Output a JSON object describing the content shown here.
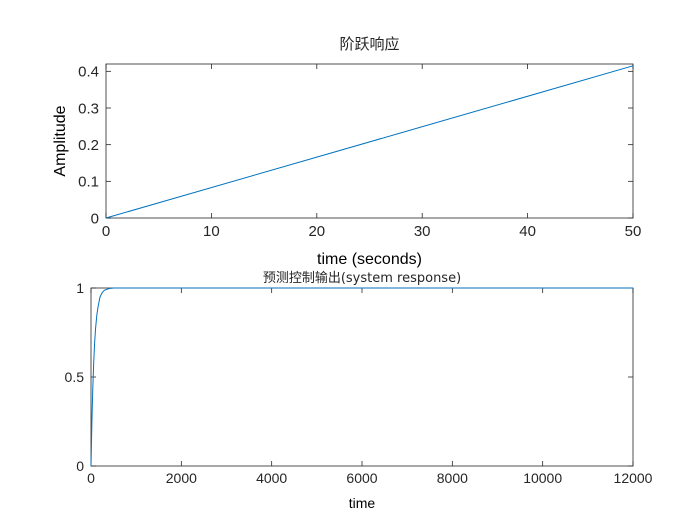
{
  "chart_data": [
    {
      "type": "line",
      "title": "阶跃响应",
      "xlabel": "time (seconds)",
      "ylabel": "Amplitude",
      "xlim": [
        0,
        50
      ],
      "ylim": [
        0,
        0.42
      ],
      "xticks": [
        0,
        10,
        20,
        30,
        40,
        50
      ],
      "yticks": [
        0,
        0.1,
        0.2,
        0.3,
        0.4
      ],
      "xtick_labels": [
        "0",
        "10",
        "20",
        "30",
        "40",
        "50"
      ],
      "ytick_labels": [
        "0",
        "0.1",
        "0.2",
        "0.3",
        "0.4"
      ],
      "grid": false,
      "line_color": "#0072bd",
      "series": [
        {
          "x": [
            0,
            50
          ],
          "y": [
            0,
            0.415
          ]
        }
      ]
    },
    {
      "type": "line",
      "title": "预测控制输出(system response)",
      "xlabel": "time",
      "ylabel": "",
      "xlim": [
        0,
        12000
      ],
      "ylim": [
        0,
        1
      ],
      "xticks": [
        0,
        2000,
        4000,
        6000,
        8000,
        10000,
        12000
      ],
      "yticks": [
        0,
        0.5,
        1
      ],
      "xtick_labels": [
        "0",
        "2000",
        "4000",
        "6000",
        "8000",
        "10000",
        "12000"
      ],
      "ytick_labels": [
        "0",
        "0.5",
        "1"
      ],
      "grid": false,
      "line_color": "#0072bd",
      "series": [
        {
          "x": [
            0,
            20,
            40,
            60,
            80,
            100,
            130,
            160,
            200,
            250,
            300,
            400,
            500,
            700,
            1000,
            12000
          ],
          "y": [
            0,
            0.25,
            0.44,
            0.58,
            0.69,
            0.77,
            0.85,
            0.9,
            0.95,
            0.975,
            0.988,
            0.997,
            1,
            1,
            1,
            1
          ]
        }
      ]
    }
  ]
}
